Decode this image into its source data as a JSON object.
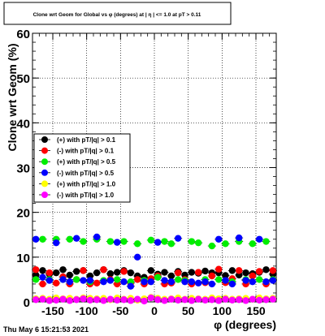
{
  "chart_data": {
    "type": "scatter",
    "title": "Clone wrt Geom for Global vs φ (degrees) at | η | <= 1.0 at pT > 0.11",
    "xlabel": "φ (degrees)",
    "ylabel": "Clone wrt  Geom (%)",
    "xlim": [
      -180,
      180
    ],
    "ylim": [
      0,
      60
    ],
    "grid": true,
    "legend_position": "left-middle",
    "x_ticks": [
      -150,
      -100,
      -50,
      0,
      50,
      100,
      150
    ],
    "y_ticks": [
      0,
      10,
      20,
      30,
      40,
      50,
      60
    ],
    "x": [
      -175,
      -165,
      -155,
      -145,
      -135,
      -125,
      -115,
      -105,
      -95,
      -85,
      -75,
      -65,
      -55,
      -45,
      -35,
      -25,
      -15,
      -5,
      5,
      15,
      25,
      35,
      45,
      55,
      65,
      75,
      85,
      95,
      105,
      115,
      125,
      135,
      145,
      155,
      165,
      175
    ],
    "series": [
      {
        "name": "(+) with pT/|q| > 0.1",
        "color": "#000000",
        "values": [
          6.0,
          7.0,
          6.2,
          6.5,
          7.2,
          6.0,
          6.8,
          7.0,
          5.8,
          6.5,
          7.2,
          6.3,
          6.6,
          7.0,
          6.5,
          5.8,
          5.5,
          7.0,
          6.2,
          6.6,
          5.8,
          6.8,
          6.0,
          6.6,
          6.4,
          6.9,
          6.5,
          6.5,
          5.9,
          7.0,
          6.0,
          6.5,
          6.3,
          6.6,
          7.2,
          6.2
        ]
      },
      {
        "name": "(-) with pT/|q| > 0.1",
        "color": "#ff0000",
        "values": [
          7.2,
          4.0,
          6.5,
          4.2,
          5.6,
          4.0,
          5.0,
          7.0,
          4.0,
          4.2,
          7.2,
          5.0,
          4.0,
          6.8,
          4.2,
          5.0,
          4.0,
          5.2,
          5.8,
          4.0,
          4.2,
          6.5,
          5.0,
          4.0,
          6.6,
          4.3,
          5.8,
          7.3,
          4.3,
          5.2,
          7.0,
          4.0,
          5.8,
          6.8,
          4.0,
          7.0
        ]
      },
      {
        "name": "(+) with pT/|q| > 0.5",
        "color": "#00ee00",
        "values": [
          5.0,
          14.0,
          5.0,
          14.0,
          5.0,
          14.0,
          5.0,
          13.5,
          4.5,
          14.0,
          4.8,
          13.5,
          5.0,
          13.5,
          4.5,
          13.0,
          4.8,
          13.8,
          5.5,
          13.5,
          13.0,
          5.0,
          4.8,
          13.5,
          13.2,
          5.0,
          12.5,
          5.0,
          13.0,
          4.5,
          13.5,
          5.0,
          13.0,
          5.0,
          13.5,
          5.0
        ]
      },
      {
        "name": "(-) with pT/|q| > 0.5",
        "color": "#0000ff",
        "values": [
          14.0,
          5.5,
          4.8,
          13.2,
          5.0,
          4.5,
          14.2,
          4.8,
          4.8,
          14.5,
          4.5,
          4.8,
          13.3,
          4.5,
          3.5,
          10.0,
          4.5,
          4.5,
          13.3,
          4.8,
          4.5,
          14.2,
          4.5,
          4.5,
          4.2,
          4.5,
          4.0,
          14.0,
          4.8,
          4.0,
          14.3,
          4.8,
          4.5,
          14.0,
          4.5,
          4.8
        ]
      },
      {
        "name": "(+) with pT/|q| > 1.0",
        "color": "#ffff00",
        "values": [
          0.7,
          0.8,
          0.6,
          0.9,
          0.7,
          0.8,
          0.6,
          0.9,
          0.8,
          0.7,
          0.8,
          0.5,
          0.9,
          0.6,
          0.8,
          0.4,
          0.7,
          1.0,
          0.8,
          0.6,
          0.7,
          0.9,
          0.6,
          0.8,
          0.7,
          0.6,
          0.9,
          0.7,
          0.8,
          0.6,
          0.7,
          0.8,
          0.6,
          0.9,
          0.7,
          0.8
        ]
      },
      {
        "name": "(-) with pT/|q| > 1.0",
        "color": "#ff00ff",
        "values": [
          0.5,
          0.6,
          0.3,
          0.4,
          0.6,
          0.3,
          0.5,
          0.7,
          0.4,
          0.5,
          0.3,
          0.6,
          0.4,
          0.5,
          0.3,
          0.6,
          0.2,
          0.9,
          0.5,
          0.3,
          0.6,
          0.4,
          0.5,
          0.3,
          0.6,
          0.4,
          0.5,
          0.3,
          0.6,
          0.4,
          0.5,
          0.3,
          0.6,
          0.4,
          0.5,
          0.6
        ]
      }
    ]
  },
  "footer": {
    "timestamp": "Thu May  6 15:21:53 2021"
  }
}
